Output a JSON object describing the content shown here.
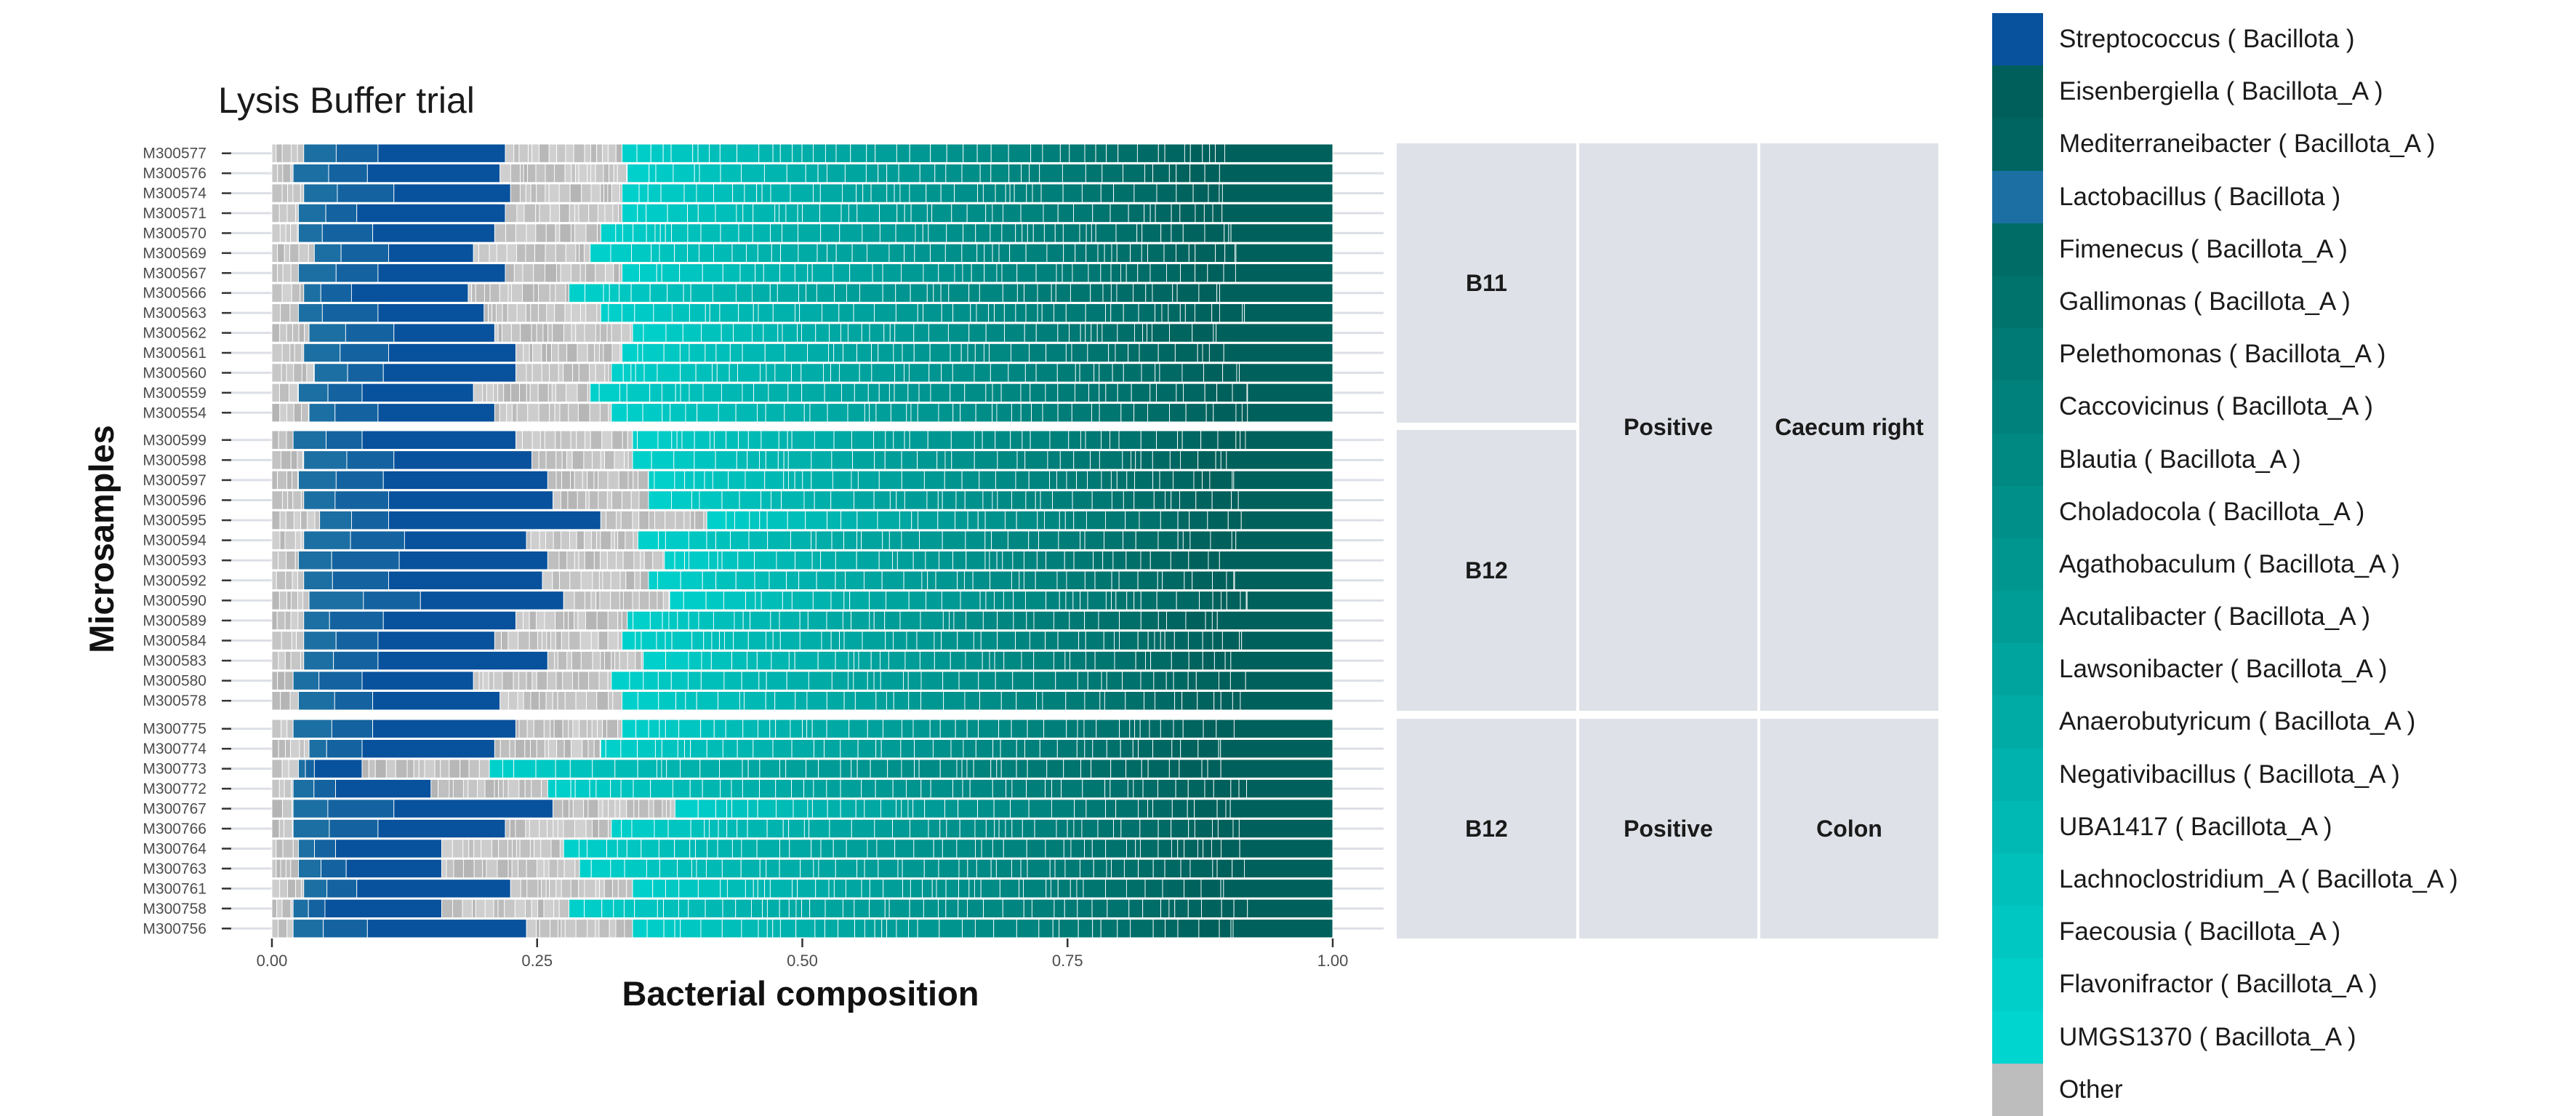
{
  "chart_data": {
    "type": "bar",
    "orientation": "horizontal",
    "stacked": true,
    "title": "Lysis Buffer trial",
    "xlabel": "Bacterial composition",
    "ylabel": "Microsamples",
    "xlim": [
      0,
      1
    ],
    "x_ticks": [
      "0.00",
      "0.25",
      "0.50",
      "0.75",
      "1.00"
    ],
    "grid": true,
    "legend_position": "right",
    "legend": [
      {
        "label": "Streptococcus ( Bacillota )",
        "color": "#08519c"
      },
      {
        "label": "Eisenbergiella ( Bacillota_A )",
        "color": "#005f5a"
      },
      {
        "label": "Mediterraneibacter ( Bacillota_A )",
        "color": "#006561"
      },
      {
        "label": "Lactobacillus ( Bacillota )",
        "color": "#1c6fa3"
      },
      {
        "label": "Fimenecus ( Bacillota_A )",
        "color": "#006c66"
      },
      {
        "label": "Gallimonas ( Bacillota_A )",
        "color": "#00736d"
      },
      {
        "label": "Pelethomonas ( Bacillota_A )",
        "color": "#007a74"
      },
      {
        "label": "Caccovicinus ( Bacillota_A )",
        "color": "#00817b"
      },
      {
        "label": "Blautia ( Bacillota_A )",
        "color": "#008882"
      },
      {
        "label": "Choladocola ( Bacillota_A )",
        "color": "#008f89"
      },
      {
        "label": "Agathobaculum ( Bacillota_A )",
        "color": "#009690"
      },
      {
        "label": "Acutalibacter ( Bacillota_A )",
        "color": "#009d97"
      },
      {
        "label": "Lawsonibacter ( Bacillota_A )",
        "color": "#00a49e"
      },
      {
        "label": "Anaerobutyricum ( Bacillota_A )",
        "color": "#00aba5"
      },
      {
        "label": "Negativibacillus ( Bacillota_A )",
        "color": "#00b2ad"
      },
      {
        "label": "UBA1417 ( Bacillota_A )",
        "color": "#00b9b4"
      },
      {
        "label": "Lachnoclostridium_A ( Bacillota_A )",
        "color": "#00c0bb"
      },
      {
        "label": "Faecousia ( Bacillota_A )",
        "color": "#00c7c2"
      },
      {
        "label": "Flavonifractor ( Bacillota_A )",
        "color": "#00cec9"
      },
      {
        "label": "UMGS1370 ( Bacillota_A )",
        "color": "#00d5d0"
      },
      {
        "label": "Other",
        "color": "#bdbdbd"
      }
    ],
    "segment_colors": {
      "other": "#bdbdbd",
      "blue_dark": "#08519c",
      "blue_mid": "#1c6fa3",
      "teal_dark": "#00605b",
      "teal_light": "#00d0cb",
      "separator": "#ffffff"
    },
    "panels": [
      {
        "strips": [
          "B11",
          "Positive",
          "Caecum right"
        ],
        "samples": [
          {
            "id": "M300577",
            "other_lo": 0.03,
            "lacto": 0.1,
            "strep": 0.22,
            "other_hi": 0.33
          },
          {
            "id": "M300576",
            "other_lo": 0.02,
            "lacto": 0.09,
            "strep": 0.215,
            "other_hi": 0.335
          },
          {
            "id": "M300574",
            "other_lo": 0.03,
            "lacto": 0.115,
            "strep": 0.225,
            "other_hi": 0.33
          },
          {
            "id": "M300571",
            "other_lo": 0.025,
            "lacto": 0.08,
            "strep": 0.22,
            "other_hi": 0.33
          },
          {
            "id": "M300570",
            "other_lo": 0.025,
            "lacto": 0.095,
            "strep": 0.21,
            "other_hi": 0.31
          },
          {
            "id": "M300569",
            "other_lo": 0.04,
            "lacto": 0.11,
            "strep": 0.19,
            "other_hi": 0.3
          },
          {
            "id": "M300567",
            "other_lo": 0.025,
            "lacto": 0.1,
            "strep": 0.22,
            "other_hi": 0.33
          },
          {
            "id": "M300566",
            "other_lo": 0.03,
            "lacto": 0.075,
            "strep": 0.185,
            "other_hi": 0.28
          },
          {
            "id": "M300563",
            "other_lo": 0.025,
            "lacto": 0.1,
            "strep": 0.2,
            "other_hi": 0.31
          },
          {
            "id": "M300562",
            "other_lo": 0.035,
            "lacto": 0.115,
            "strep": 0.21,
            "other_hi": 0.34
          },
          {
            "id": "M300561",
            "other_lo": 0.03,
            "lacto": 0.11,
            "strep": 0.23,
            "other_hi": 0.33
          },
          {
            "id": "M300560",
            "other_lo": 0.04,
            "lacto": 0.105,
            "strep": 0.23,
            "other_hi": 0.32
          },
          {
            "id": "M300559",
            "other_lo": 0.025,
            "lacto": 0.085,
            "strep": 0.19,
            "other_hi": 0.3
          },
          {
            "id": "M300554",
            "other_lo": 0.035,
            "lacto": 0.1,
            "strep": 0.21,
            "other_hi": 0.32
          }
        ]
      },
      {
        "strips": [
          "B12",
          "Positive",
          "Caecum right"
        ],
        "samples": [
          {
            "id": "M300599",
            "other_lo": 0.02,
            "lacto": 0.085,
            "strep": 0.23,
            "other_hi": 0.34
          },
          {
            "id": "M300598",
            "other_lo": 0.03,
            "lacto": 0.115,
            "strep": 0.245,
            "other_hi": 0.34
          },
          {
            "id": "M300597",
            "other_lo": 0.025,
            "lacto": 0.105,
            "strep": 0.26,
            "other_hi": 0.355
          },
          {
            "id": "M300596",
            "other_lo": 0.03,
            "lacto": 0.11,
            "strep": 0.265,
            "other_hi": 0.355
          },
          {
            "id": "M300595",
            "other_lo": 0.045,
            "lacto": 0.11,
            "strep": 0.31,
            "other_hi": 0.41
          },
          {
            "id": "M300594",
            "other_lo": 0.03,
            "lacto": 0.125,
            "strep": 0.24,
            "other_hi": 0.345
          },
          {
            "id": "M300593",
            "other_lo": 0.025,
            "lacto": 0.12,
            "strep": 0.26,
            "other_hi": 0.37
          },
          {
            "id": "M300592",
            "other_lo": 0.03,
            "lacto": 0.11,
            "strep": 0.255,
            "other_hi": 0.355
          },
          {
            "id": "M300590",
            "other_lo": 0.035,
            "lacto": 0.14,
            "strep": 0.275,
            "other_hi": 0.375
          },
          {
            "id": "M300589",
            "other_lo": 0.03,
            "lacto": 0.105,
            "strep": 0.23,
            "other_hi": 0.335
          },
          {
            "id": "M300584",
            "other_lo": 0.03,
            "lacto": 0.1,
            "strep": 0.21,
            "other_hi": 0.33
          },
          {
            "id": "M300583",
            "other_lo": 0.03,
            "lacto": 0.1,
            "strep": 0.26,
            "other_hi": 0.35
          },
          {
            "id": "M300580",
            "other_lo": 0.02,
            "lacto": 0.085,
            "strep": 0.19,
            "other_hi": 0.32
          },
          {
            "id": "M300578",
            "other_lo": 0.025,
            "lacto": 0.095,
            "strep": 0.215,
            "other_hi": 0.33
          }
        ]
      },
      {
        "strips": [
          "B12",
          "Positive",
          "Colon"
        ],
        "samples": [
          {
            "id": "M300775",
            "other_lo": 0.02,
            "lacto": 0.095,
            "strep": 0.23,
            "other_hi": 0.33
          },
          {
            "id": "M300774",
            "other_lo": 0.035,
            "lacto": 0.085,
            "strep": 0.21,
            "other_hi": 0.31
          },
          {
            "id": "M300773",
            "other_lo": 0.025,
            "lacto": 0.04,
            "strep": 0.085,
            "other_hi": 0.205
          },
          {
            "id": "M300772",
            "other_lo": 0.02,
            "lacto": 0.06,
            "strep": 0.15,
            "other_hi": 0.26
          },
          {
            "id": "M300767",
            "other_lo": 0.02,
            "lacto": 0.115,
            "strep": 0.265,
            "other_hi": 0.38
          },
          {
            "id": "M300766",
            "other_lo": 0.02,
            "lacto": 0.1,
            "strep": 0.22,
            "other_hi": 0.32
          },
          {
            "id": "M300764",
            "other_lo": 0.025,
            "lacto": 0.06,
            "strep": 0.16,
            "other_hi": 0.275
          },
          {
            "id": "M300763",
            "other_lo": 0.025,
            "lacto": 0.07,
            "strep": 0.16,
            "other_hi": 0.29
          },
          {
            "id": "M300761",
            "other_lo": 0.03,
            "lacto": 0.08,
            "strep": 0.225,
            "other_hi": 0.34
          },
          {
            "id": "M300758",
            "other_lo": 0.02,
            "lacto": 0.05,
            "strep": 0.16,
            "other_hi": 0.28
          },
          {
            "id": "M300756",
            "other_lo": 0.02,
            "lacto": 0.09,
            "strep": 0.24,
            "other_hi": 0.34
          }
        ]
      }
    ]
  }
}
